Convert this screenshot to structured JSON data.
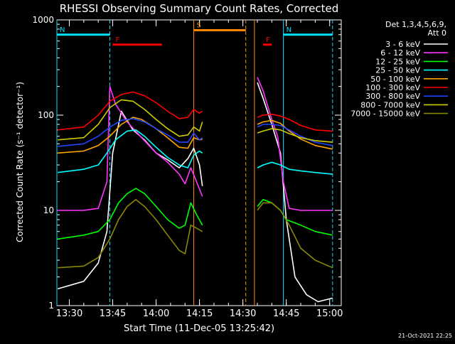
{
  "chart_data": {
    "type": "line",
    "title": "RHESSI Observing Summary Count Rates, Corrected",
    "xlabel": "Start Time (11-Dec-05 13:25:42)",
    "ylabel": "Corrected Count Rate (s⁻¹ detector⁻¹)",
    "yscale": "log",
    "ylim": [
      1,
      1000
    ],
    "y_ticks": [
      1,
      10,
      100,
      1000
    ],
    "y_tick_labels": [
      "1",
      "10",
      "100",
      "1000"
    ],
    "xlim": [
      "13:25:42",
      "15:04"
    ],
    "x_tick_labels": [
      "13:30",
      "13:45",
      "14:00",
      "14:15",
      "14:30",
      "14:45",
      "15:00"
    ],
    "x_ticks": [
      "13:30",
      "13:45",
      "14:00",
      "14:15",
      "14:30",
      "14:45",
      "15:00"
    ],
    "footer": "21-Oct-2021 22:25",
    "legend_header": [
      "Det 1,3,4,5,6,9,",
      "Att 0"
    ],
    "legend_placement": "right",
    "gaps": [
      [
        "14:16",
        "14:35"
      ]
    ],
    "series": [
      {
        "name": "3 - 6 keV",
        "color": "#ffffff",
        "points": [
          [
            "13:26",
            1.5
          ],
          [
            "13:35",
            1.8
          ],
          [
            "13:40",
            2.8
          ],
          [
            "13:43",
            6
          ],
          [
            "13:45",
            40
          ],
          [
            "13:48",
            110
          ],
          [
            "13:52",
            70
          ],
          [
            "13:56",
            55
          ],
          [
            "14:00",
            40
          ],
          [
            "14:04",
            34
          ],
          [
            "14:08",
            28
          ],
          [
            "14:11",
            35
          ],
          [
            "14:13",
            45
          ],
          [
            "14:15",
            30
          ],
          [
            "14:16",
            18
          ],
          [
            "14:35",
            220
          ],
          [
            "14:37",
            150
          ],
          [
            "14:40",
            80
          ],
          [
            "14:43",
            40
          ],
          [
            "14:45",
            8
          ],
          [
            "14:48",
            2
          ],
          [
            "14:52",
            1.3
          ],
          [
            "14:56",
            1.1
          ],
          [
            "15:01",
            1.2
          ]
        ]
      },
      {
        "name": "6 - 12 keV",
        "color": "#ff33ff",
        "points": [
          [
            "13:26",
            10
          ],
          [
            "13:35",
            10
          ],
          [
            "13:40",
            10.5
          ],
          [
            "13:43",
            20
          ],
          [
            "13:44",
            200
          ],
          [
            "13:46",
            130
          ],
          [
            "13:50",
            85
          ],
          [
            "13:55",
            58
          ],
          [
            "14:00",
            40
          ],
          [
            "14:04",
            32
          ],
          [
            "14:08",
            24
          ],
          [
            "14:10",
            19
          ],
          [
            "14:12",
            28
          ],
          [
            "14:14",
            20
          ],
          [
            "14:16",
            14
          ],
          [
            "14:35",
            250
          ],
          [
            "14:37",
            180
          ],
          [
            "14:40",
            90
          ],
          [
            "14:42",
            60
          ],
          [
            "14:44",
            20
          ],
          [
            "14:46",
            10.5
          ],
          [
            "14:50",
            10
          ],
          [
            "14:55",
            10
          ],
          [
            "15:01",
            10
          ]
        ]
      },
      {
        "name": "12 - 25 keV",
        "color": "#00ff00",
        "points": [
          [
            "13:26",
            5
          ],
          [
            "13:35",
            5.5
          ],
          [
            "13:40",
            6
          ],
          [
            "13:44",
            8
          ],
          [
            "13:47",
            12
          ],
          [
            "13:50",
            15
          ],
          [
            "13:53",
            17
          ],
          [
            "13:56",
            15
          ],
          [
            "14:00",
            11
          ],
          [
            "14:04",
            8
          ],
          [
            "14:08",
            6.5
          ],
          [
            "14:10",
            7
          ],
          [
            "14:12",
            12
          ],
          [
            "14:14",
            9
          ],
          [
            "14:16",
            7
          ],
          [
            "14:35",
            11
          ],
          [
            "14:37",
            13
          ],
          [
            "14:40",
            12
          ],
          [
            "14:43",
            10
          ],
          [
            "14:45",
            8
          ],
          [
            "14:50",
            7
          ],
          [
            "14:55",
            6
          ],
          [
            "15:01",
            5.5
          ]
        ]
      },
      {
        "name": "25 - 50 keV",
        "color": "#00ffff",
        "points": [
          [
            "13:26",
            25
          ],
          [
            "13:35",
            27
          ],
          [
            "13:40",
            30
          ],
          [
            "13:43",
            40
          ],
          [
            "13:46",
            55
          ],
          [
            "13:50",
            68
          ],
          [
            "13:53",
            70
          ],
          [
            "13:56",
            60
          ],
          [
            "14:00",
            46
          ],
          [
            "14:04",
            36
          ],
          [
            "14:08",
            30
          ],
          [
            "14:11",
            28
          ],
          [
            "14:13",
            38
          ],
          [
            "14:15",
            42
          ],
          [
            "14:16",
            40
          ],
          [
            "14:35",
            28
          ],
          [
            "14:37",
            30
          ],
          [
            "14:40",
            32
          ],
          [
            "14:43",
            30
          ],
          [
            "14:46",
            27
          ],
          [
            "14:50",
            26
          ],
          [
            "14:55",
            25
          ],
          [
            "15:01",
            24
          ]
        ]
      },
      {
        "name": "50 - 100 keV",
        "color": "#ffa500",
        "points": [
          [
            "13:26",
            40
          ],
          [
            "13:35",
            42
          ],
          [
            "13:40",
            48
          ],
          [
            "13:44",
            60
          ],
          [
            "13:48",
            80
          ],
          [
            "13:52",
            95
          ],
          [
            "13:55",
            90
          ],
          [
            "14:00",
            72
          ],
          [
            "14:04",
            58
          ],
          [
            "14:08",
            46
          ],
          [
            "14:11",
            45
          ],
          [
            "14:13",
            58
          ],
          [
            "14:15",
            55
          ],
          [
            "14:16",
            56
          ],
          [
            "14:35",
            80
          ],
          [
            "14:37",
            85
          ],
          [
            "14:40",
            88
          ],
          [
            "14:43",
            82
          ],
          [
            "14:46",
            68
          ],
          [
            "14:50",
            56
          ],
          [
            "14:55",
            48
          ],
          [
            "15:01",
            44
          ]
        ]
      },
      {
        "name": "100 - 300 keV",
        "color": "#ff0000",
        "points": [
          [
            "13:26",
            70
          ],
          [
            "13:35",
            75
          ],
          [
            "13:40",
            100
          ],
          [
            "13:44",
            140
          ],
          [
            "13:48",
            165
          ],
          [
            "13:52",
            175
          ],
          [
            "13:56",
            160
          ],
          [
            "14:00",
            135
          ],
          [
            "14:04",
            110
          ],
          [
            "14:08",
            92
          ],
          [
            "14:11",
            95
          ],
          [
            "14:13",
            115
          ],
          [
            "14:15",
            105
          ],
          [
            "14:16",
            110
          ],
          [
            "14:35",
            95
          ],
          [
            "14:37",
            100
          ],
          [
            "14:40",
            102
          ],
          [
            "14:43",
            98
          ],
          [
            "14:46",
            90
          ],
          [
            "14:50",
            78
          ],
          [
            "14:55",
            70
          ],
          [
            "15:01",
            68
          ]
        ]
      },
      {
        "name": "300 - 800 keV",
        "color": "#2244ff",
        "points": [
          [
            "13:26",
            47
          ],
          [
            "13:35",
            50
          ],
          [
            "13:40",
            60
          ],
          [
            "13:44",
            75
          ],
          [
            "13:48",
            88
          ],
          [
            "13:52",
            92
          ],
          [
            "13:56",
            85
          ],
          [
            "14:00",
            72
          ],
          [
            "14:04",
            62
          ],
          [
            "14:08",
            52
          ],
          [
            "14:11",
            52
          ],
          [
            "14:13",
            65
          ],
          [
            "14:15",
            55
          ],
          [
            "14:16",
            58
          ],
          [
            "14:35",
            75
          ],
          [
            "14:37",
            80
          ],
          [
            "14:40",
            80
          ],
          [
            "14:43",
            78
          ],
          [
            "14:46",
            70
          ],
          [
            "14:50",
            60
          ],
          [
            "14:55",
            52
          ],
          [
            "15:01",
            48
          ]
        ]
      },
      {
        "name": "800 - 7000 keV",
        "color": "#cccc00",
        "points": [
          [
            "13:26",
            55
          ],
          [
            "13:35",
            58
          ],
          [
            "13:40",
            80
          ],
          [
            "13:44",
            120
          ],
          [
            "13:48",
            145
          ],
          [
            "13:52",
            140
          ],
          [
            "13:56",
            115
          ],
          [
            "14:00",
            90
          ],
          [
            "14:04",
            72
          ],
          [
            "14:08",
            60
          ],
          [
            "14:11",
            62
          ],
          [
            "14:13",
            75
          ],
          [
            "14:15",
            68
          ],
          [
            "14:16",
            85
          ],
          [
            "14:35",
            65
          ],
          [
            "14:37",
            68
          ],
          [
            "14:40",
            72
          ],
          [
            "14:43",
            70
          ],
          [
            "14:46",
            64
          ],
          [
            "14:50",
            58
          ],
          [
            "14:55",
            54
          ],
          [
            "15:01",
            52
          ]
        ]
      },
      {
        "name": "7000 - 15000 keV",
        "color": "#888800",
        "points": [
          [
            "13:26",
            2.5
          ],
          [
            "13:35",
            2.6
          ],
          [
            "13:40",
            3.2
          ],
          [
            "13:44",
            5
          ],
          [
            "13:47",
            8
          ],
          [
            "13:50",
            11
          ],
          [
            "13:53",
            13
          ],
          [
            "13:56",
            11
          ],
          [
            "14:00",
            8
          ],
          [
            "14:04",
            5.5
          ],
          [
            "14:08",
            3.8
          ],
          [
            "14:10",
            3.5
          ],
          [
            "14:12",
            7
          ],
          [
            "14:14",
            6.5
          ],
          [
            "14:16",
            6
          ],
          [
            "14:35",
            10
          ],
          [
            "14:37",
            12
          ],
          [
            "14:40",
            12
          ],
          [
            "14:43",
            10
          ],
          [
            "14:46",
            7
          ],
          [
            "14:50",
            4
          ],
          [
            "14:55",
            3
          ],
          [
            "15:01",
            2.5
          ]
        ]
      }
    ],
    "markers": [
      {
        "label": "N",
        "color": "#00e5ff",
        "style": "solid-bar",
        "start": "13:25:42",
        "end": "13:44",
        "y": 700
      },
      {
        "label": "N",
        "color": "#00e5ff",
        "style": "solid-bar",
        "start": "14:44",
        "end": "15:01",
        "y": 700
      },
      {
        "label": "F",
        "color": "#ff0000",
        "style": "solid-bar",
        "start": "13:45",
        "end": "14:02",
        "y": 550
      },
      {
        "label": "F",
        "color": "#ff0000",
        "style": "solid-bar",
        "start": "14:37",
        "end": "14:40",
        "y": 550
      },
      {
        "label": "S",
        "color": "#ff8800",
        "style": "solid-bar",
        "start": "14:13",
        "end": "14:31",
        "y": 780
      }
    ],
    "vlines": [
      {
        "t": "13:25:42",
        "color": "#00e5ff",
        "dash": false
      },
      {
        "t": "13:44",
        "color": "#00e5ff",
        "dash": true
      },
      {
        "t": "14:13",
        "color": "#ff8800",
        "dash": false
      },
      {
        "t": "14:31",
        "color": "#ff8800",
        "dash": true
      },
      {
        "t": "14:34",
        "color": "#ff8800",
        "dash": false
      },
      {
        "t": "14:44",
        "color": "#00e5ff",
        "dash": false
      },
      {
        "t": "15:01",
        "color": "#00e5ff",
        "dash": true
      }
    ]
  }
}
